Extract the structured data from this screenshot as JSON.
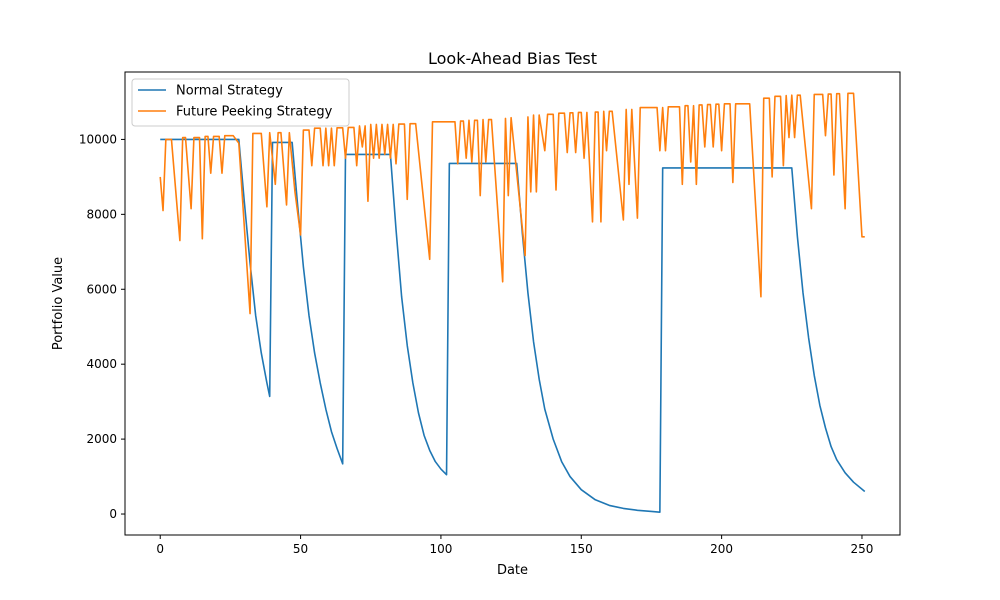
{
  "chart_data": {
    "type": "line",
    "title": "Look-Ahead Bias Test",
    "xlabel": "Date",
    "ylabel": "Portfolio Value",
    "xlim": [
      -12.55,
      263.55
    ],
    "ylim": [
      -560,
      11800
    ],
    "x_ticks": [
      0,
      50,
      100,
      150,
      200,
      250
    ],
    "y_ticks": [
      0,
      2000,
      4000,
      6000,
      8000,
      10000
    ],
    "grid": false,
    "legend_position": "top-left",
    "series": [
      {
        "name": "Normal Strategy",
        "color": "#1f77b4",
        "points": [
          [
            0,
            10000
          ],
          [
            28,
            10000
          ],
          [
            30,
            8300
          ],
          [
            32,
            6700
          ],
          [
            34,
            5300
          ],
          [
            36,
            4300
          ],
          [
            38,
            3500
          ],
          [
            39,
            3140
          ],
          [
            40,
            9920
          ],
          [
            47,
            9920
          ],
          [
            49,
            8200
          ],
          [
            51,
            6600
          ],
          [
            53,
            5300
          ],
          [
            55,
            4300
          ],
          [
            57,
            3500
          ],
          [
            59,
            2800
          ],
          [
            61,
            2200
          ],
          [
            63,
            1750
          ],
          [
            65,
            1340
          ],
          [
            66,
            9600
          ],
          [
            82,
            9600
          ],
          [
            84,
            7600
          ],
          [
            86,
            5800
          ],
          [
            88,
            4500
          ],
          [
            90,
            3500
          ],
          [
            92,
            2700
          ],
          [
            94,
            2100
          ],
          [
            96,
            1700
          ],
          [
            98,
            1400
          ],
          [
            100,
            1200
          ],
          [
            102,
            1050
          ],
          [
            103,
            9360
          ],
          [
            127,
            9360
          ],
          [
            129,
            7500
          ],
          [
            131,
            5900
          ],
          [
            133,
            4600
          ],
          [
            135,
            3600
          ],
          [
            137,
            2800
          ],
          [
            140,
            2000
          ],
          [
            143,
            1400
          ],
          [
            146,
            1000
          ],
          [
            150,
            650
          ],
          [
            155,
            380
          ],
          [
            160,
            230
          ],
          [
            165,
            150
          ],
          [
            170,
            100
          ],
          [
            175,
            70
          ],
          [
            178,
            50
          ],
          [
            179,
            9240
          ],
          [
            225,
            9240
          ],
          [
            227,
            7400
          ],
          [
            229,
            5900
          ],
          [
            231,
            4700
          ],
          [
            233,
            3700
          ],
          [
            235,
            2900
          ],
          [
            237,
            2300
          ],
          [
            239,
            1800
          ],
          [
            241,
            1450
          ],
          [
            244,
            1100
          ],
          [
            247,
            850
          ],
          [
            251,
            600
          ]
        ]
      },
      {
        "name": "Future Peeking Strategy",
        "color": "#ff7f0e",
        "points": [
          [
            0,
            9000
          ],
          [
            1,
            8100
          ],
          [
            2,
            10000
          ],
          [
            4,
            10000
          ],
          [
            7,
            7300
          ],
          [
            8,
            10050
          ],
          [
            9,
            10050
          ],
          [
            11,
            8150
          ],
          [
            12,
            10050
          ],
          [
            14,
            10050
          ],
          [
            15,
            7350
          ],
          [
            16,
            10080
          ],
          [
            17,
            10080
          ],
          [
            18,
            9100
          ],
          [
            19,
            10080
          ],
          [
            21,
            10080
          ],
          [
            22,
            9100
          ],
          [
            23,
            10100
          ],
          [
            26,
            10100
          ],
          [
            28,
            9900
          ],
          [
            32,
            5350
          ],
          [
            33,
            10160
          ],
          [
            36,
            10160
          ],
          [
            38,
            8200
          ],
          [
            39,
            10180
          ],
          [
            41,
            8800
          ],
          [
            42,
            10180
          ],
          [
            43,
            10180
          ],
          [
            45,
            8250
          ],
          [
            46,
            10180
          ],
          [
            48,
            8600
          ],
          [
            50,
            7450
          ],
          [
            51,
            10250
          ],
          [
            53,
            10250
          ],
          [
            54,
            9300
          ],
          [
            55,
            10300
          ],
          [
            57,
            10300
          ],
          [
            58,
            9300
          ],
          [
            59,
            10300
          ],
          [
            60,
            9300
          ],
          [
            61,
            10300
          ],
          [
            62,
            9300
          ],
          [
            63,
            10310
          ],
          [
            65,
            10310
          ],
          [
            66,
            9500
          ],
          [
            67,
            10320
          ],
          [
            69,
            10320
          ],
          [
            70,
            9300
          ],
          [
            71,
            10360
          ],
          [
            72,
            9800
          ],
          [
            73,
            10360
          ],
          [
            74,
            8350
          ],
          [
            75,
            10400
          ],
          [
            76,
            9500
          ],
          [
            77,
            10400
          ],
          [
            78,
            9500
          ],
          [
            79,
            10400
          ],
          [
            80,
            9600
          ],
          [
            81,
            10400
          ],
          [
            82,
            9500
          ],
          [
            83,
            10400
          ],
          [
            84,
            9350
          ],
          [
            85,
            10410
          ],
          [
            87,
            10410
          ],
          [
            88,
            8400
          ],
          [
            89,
            10420
          ],
          [
            91,
            10420
          ],
          [
            96,
            6800
          ],
          [
            97,
            10470
          ],
          [
            105,
            10470
          ],
          [
            106,
            9350
          ],
          [
            107,
            10490
          ],
          [
            108,
            10490
          ],
          [
            109,
            9500
          ],
          [
            110,
            10510
          ],
          [
            111,
            9400
          ],
          [
            112,
            10510
          ],
          [
            113,
            10510
          ],
          [
            114,
            8500
          ],
          [
            115,
            10530
          ],
          [
            116,
            9400
          ],
          [
            117,
            10530
          ],
          [
            118,
            10530
          ],
          [
            122,
            6200
          ],
          [
            123,
            10560
          ],
          [
            124,
            8500
          ],
          [
            125,
            10580
          ],
          [
            130,
            6900
          ],
          [
            131,
            10600
          ],
          [
            132,
            8600
          ],
          [
            133,
            10650
          ],
          [
            134,
            8600
          ],
          [
            135,
            10650
          ],
          [
            137,
            9700
          ],
          [
            138,
            10670
          ],
          [
            140,
            10670
          ],
          [
            141,
            8650
          ],
          [
            142,
            10700
          ],
          [
            144,
            10700
          ],
          [
            145,
            9650
          ],
          [
            146,
            10710
          ],
          [
            147,
            10710
          ],
          [
            148,
            9650
          ],
          [
            149,
            10720
          ],
          [
            150,
            10720
          ],
          [
            151,
            9500
          ],
          [
            152,
            10720
          ],
          [
            154,
            7800
          ],
          [
            155,
            10730
          ],
          [
            156,
            10730
          ],
          [
            157,
            7800
          ],
          [
            158,
            10750
          ],
          [
            159,
            9700
          ],
          [
            160,
            10750
          ],
          [
            161,
            10750
          ],
          [
            165,
            7850
          ],
          [
            166,
            10800
          ],
          [
            167,
            8800
          ],
          [
            168,
            10800
          ],
          [
            170,
            7900
          ],
          [
            171,
            10850
          ],
          [
            177,
            10850
          ],
          [
            178,
            9700
          ],
          [
            179,
            10850
          ],
          [
            180,
            9700
          ],
          [
            181,
            10870
          ],
          [
            185,
            10870
          ],
          [
            186,
            8800
          ],
          [
            187,
            10900
          ],
          [
            188,
            10900
          ],
          [
            189,
            9400
          ],
          [
            190,
            10900
          ],
          [
            191,
            8800
          ],
          [
            192,
            10920
          ],
          [
            193,
            10920
          ],
          [
            194,
            9800
          ],
          [
            195,
            10930
          ],
          [
            196,
            10930
          ],
          [
            197,
            9800
          ],
          [
            198,
            10940
          ],
          [
            199,
            10940
          ],
          [
            200,
            9700
          ],
          [
            201,
            10950
          ],
          [
            203,
            10950
          ],
          [
            204,
            8850
          ],
          [
            205,
            10950
          ],
          [
            210,
            10950
          ],
          [
            214,
            5800
          ],
          [
            215,
            11100
          ],
          [
            217,
            11100
          ],
          [
            218,
            9000
          ],
          [
            219,
            11150
          ],
          [
            221,
            11150
          ],
          [
            222,
            9300
          ],
          [
            223,
            11170
          ],
          [
            224,
            10050
          ],
          [
            225,
            11180
          ],
          [
            226,
            10050
          ],
          [
            227,
            11180
          ],
          [
            228,
            11180
          ],
          [
            232,
            8150
          ],
          [
            233,
            11200
          ],
          [
            236,
            11200
          ],
          [
            237,
            10100
          ],
          [
            238,
            11210
          ],
          [
            239,
            11210
          ],
          [
            240,
            9050
          ],
          [
            241,
            11220
          ],
          [
            242,
            11220
          ],
          [
            244,
            8150
          ],
          [
            245,
            11230
          ],
          [
            247,
            11230
          ],
          [
            250,
            7400
          ],
          [
            251,
            7400
          ]
        ]
      }
    ]
  }
}
